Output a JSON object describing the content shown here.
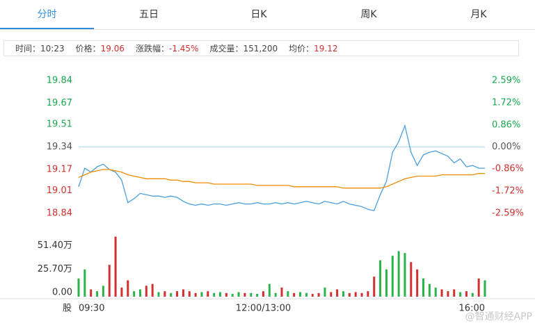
{
  "tabs": [
    "分时",
    "五日",
    "日K",
    "周K",
    "月K"
  ],
  "info": [
    {
      "label": "时间：",
      "value": "10:23",
      "color": "#444444"
    },
    {
      "label": "价格：",
      "value": "19.06",
      "color": "#d0302f"
    },
    {
      "label": "涨跌幅：",
      "value": "-1.45%",
      "color": "#d0302f"
    },
    {
      "label": "成交量：",
      "value": "151,200",
      "color": "#444444"
    },
    {
      "label": "均价：",
      "value": "19.12",
      "color": "#d0302f"
    }
  ],
  "watermark": "@智通财经APP",
  "chart_data": [
    {
      "type": "line",
      "ylim": [
        18.84,
        19.84
      ],
      "yticks": [
        18.84,
        19.01,
        19.17,
        19.34,
        19.51,
        19.67,
        19.84
      ],
      "y2lim": [
        -2.59,
        2.59
      ],
      "y2ticks": [
        {
          "value": -2.59,
          "label": "-2.59%"
        },
        {
          "value": -1.72,
          "label": "-1.72%"
        },
        {
          "value": -0.86,
          "label": "-0.86%"
        },
        {
          "value": 0,
          "label": "0.00%"
        },
        {
          "value": 0.86,
          "label": "0.86%"
        },
        {
          "value": 1.72,
          "label": "1.72%"
        },
        {
          "value": 2.59,
          "label": "2.59%"
        }
      ],
      "up_color": "#1aa84f",
      "down_color": "#d0302f",
      "flat_color": "#555555",
      "ref_line_color": "#bcdff2",
      "series": [
        {
          "color": "#4a9fdc",
          "values": [
            19.04,
            19.18,
            19.15,
            19.19,
            19.21,
            19.17,
            19.15,
            19.09,
            18.92,
            18.95,
            18.99,
            18.98,
            18.97,
            18.97,
            18.96,
            18.97,
            18.96,
            18.93,
            18.91,
            18.9,
            18.91,
            18.9,
            18.91,
            18.91,
            18.9,
            18.91,
            18.92,
            18.91,
            18.91,
            18.92,
            18.91,
            18.91,
            18.92,
            18.91,
            18.92,
            18.91,
            18.92,
            18.93,
            18.92,
            18.91,
            18.93,
            18.92,
            18.91,
            18.93,
            18.91,
            18.9,
            18.89,
            18.87,
            18.86,
            18.98,
            19.08,
            19.3,
            19.38,
            19.5,
            19.3,
            19.2,
            19.28,
            19.3,
            19.31,
            19.29,
            19.27,
            19.22,
            19.25,
            19.19,
            19.2,
            19.18,
            19.18
          ]
        },
        {
          "color": "#f08c00",
          "values": [
            19.11,
            19.13,
            19.15,
            19.16,
            19.17,
            19.17,
            19.16,
            19.15,
            19.13,
            19.12,
            19.11,
            19.1,
            19.1,
            19.1,
            19.1,
            19.09,
            19.09,
            19.08,
            19.08,
            19.07,
            19.07,
            19.07,
            19.06,
            19.06,
            19.06,
            19.06,
            19.06,
            19.06,
            19.06,
            19.05,
            19.05,
            19.05,
            19.05,
            19.05,
            19.05,
            19.04,
            19.04,
            19.04,
            19.04,
            19.04,
            19.04,
            19.04,
            19.04,
            19.03,
            19.03,
            19.03,
            19.03,
            19.03,
            19.03,
            19.03,
            19.04,
            19.06,
            19.08,
            19.1,
            19.11,
            19.12,
            19.12,
            19.12,
            19.12,
            19.13,
            19.13,
            19.13,
            19.13,
            19.13,
            19.13,
            19.14,
            19.14
          ]
        }
      ]
    },
    {
      "type": "bar",
      "y_unit": "股",
      "x": [
        "09:30",
        null,
        null,
        null,
        null,
        null,
        null,
        null,
        null,
        null,
        null,
        null,
        null,
        null,
        null,
        null,
        null,
        null,
        null,
        null,
        null,
        null,
        null,
        null,
        null,
        null,
        null,
        null,
        null,
        null,
        "12:00/13:00",
        null,
        null,
        null,
        null,
        null,
        null,
        null,
        null,
        null,
        null,
        null,
        null,
        null,
        null,
        null,
        null,
        null,
        null,
        null,
        null,
        null,
        null,
        null,
        null,
        null,
        null,
        null,
        null,
        null,
        null,
        null,
        null,
        null,
        null,
        null,
        "16:00"
      ],
      "values": [
        20,
        30,
        8,
        6,
        12,
        35,
        66,
        10,
        18,
        6,
        8,
        12,
        14,
        5,
        6,
        4,
        6,
        8,
        6,
        4,
        5,
        6,
        4,
        5,
        4,
        3,
        5,
        4,
        4,
        3,
        6,
        14,
        4,
        10,
        6,
        4,
        5,
        4,
        3,
        4,
        10,
        5,
        8,
        6,
        4,
        5,
        4,
        6,
        22,
        40,
        30,
        45,
        50,
        48,
        38,
        30,
        20,
        14,
        10,
        8,
        6,
        8,
        5,
        6,
        4,
        20,
        18
      ],
      "ylim": [
        0,
        68
      ],
      "yticks": [
        {
          "value": 0,
          "label": "0.00"
        },
        {
          "value": 25.7,
          "label": "25.70万"
        },
        {
          "value": 51.4,
          "label": "51.40万"
        }
      ],
      "up_color": "#2ab34a",
      "down_color": "#d0302f"
    }
  ]
}
